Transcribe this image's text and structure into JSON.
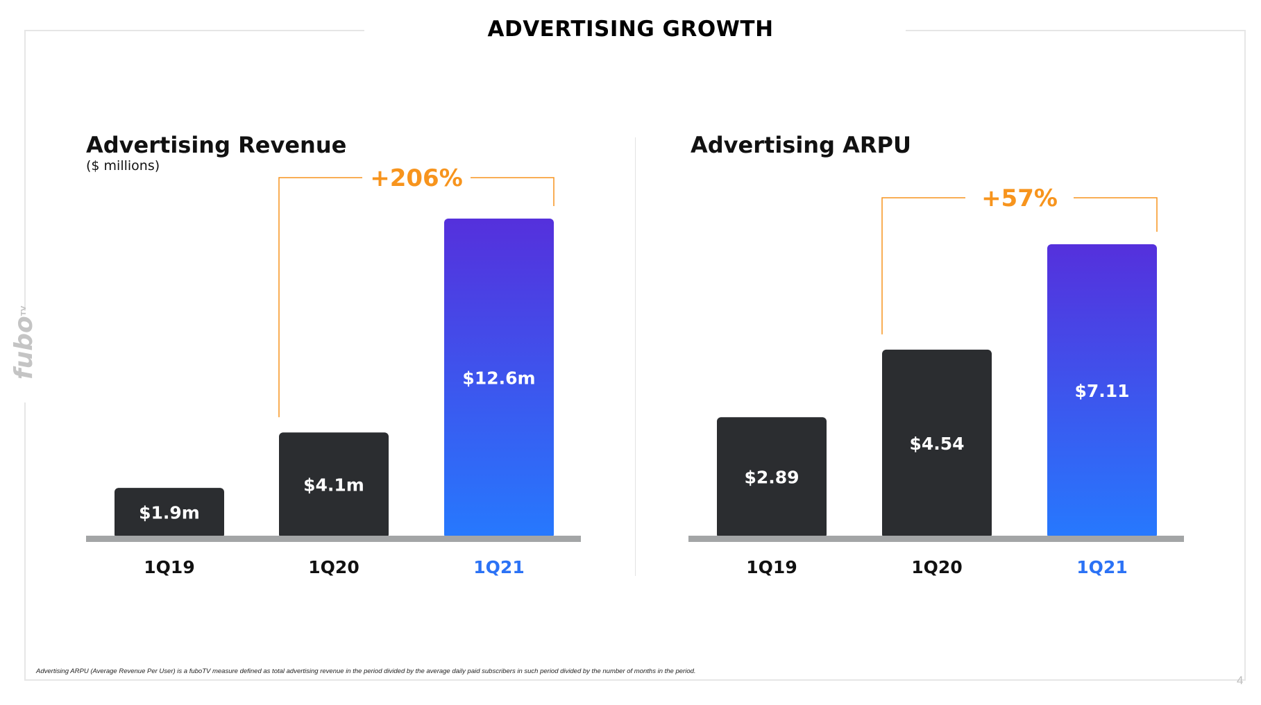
{
  "title": "ADVERTISING GROWTH",
  "logo_text": "fubo",
  "logo_superscript": "TV",
  "footnote": "Advertising ARPU (Average Revenue Per User) is a fuboTV measure defined as total advertising revenue in the period divided by the average daily paid subscribers in such period divided by the number of months in the period.",
  "page_number": "4",
  "colors": {
    "bar_dark": "#2b2d30",
    "bar_gradient_top": "#5530dc",
    "bar_gradient_bottom": "#2679fe",
    "highlight_label": "#2b72f5",
    "growth_orange": "#f7941d",
    "baseline": "#a3a5a6"
  },
  "chart_data": [
    {
      "type": "bar",
      "title": "Advertising Revenue",
      "subtitle": "($ millions)",
      "categories": [
        "1Q19",
        "1Q20",
        "1Q21"
      ],
      "values": [
        1.9,
        4.1,
        12.6
      ],
      "data_labels": [
        "$1.9m",
        "$4.1m",
        "$12.6m"
      ],
      "highlight_index": 2,
      "growth_label": "+206%",
      "growth_from_index": 1,
      "growth_to_index": 2,
      "ylim": [
        0,
        12.6
      ]
    },
    {
      "type": "bar",
      "title": "Advertising ARPU",
      "subtitle": "",
      "categories": [
        "1Q19",
        "1Q20",
        "1Q21"
      ],
      "values": [
        2.89,
        4.54,
        7.11
      ],
      "data_labels": [
        "$2.89",
        "$4.54",
        "$7.11"
      ],
      "highlight_index": 2,
      "growth_label": "+57%",
      "growth_from_index": 1,
      "growth_to_index": 2,
      "ylim": [
        0,
        7.11
      ]
    }
  ]
}
